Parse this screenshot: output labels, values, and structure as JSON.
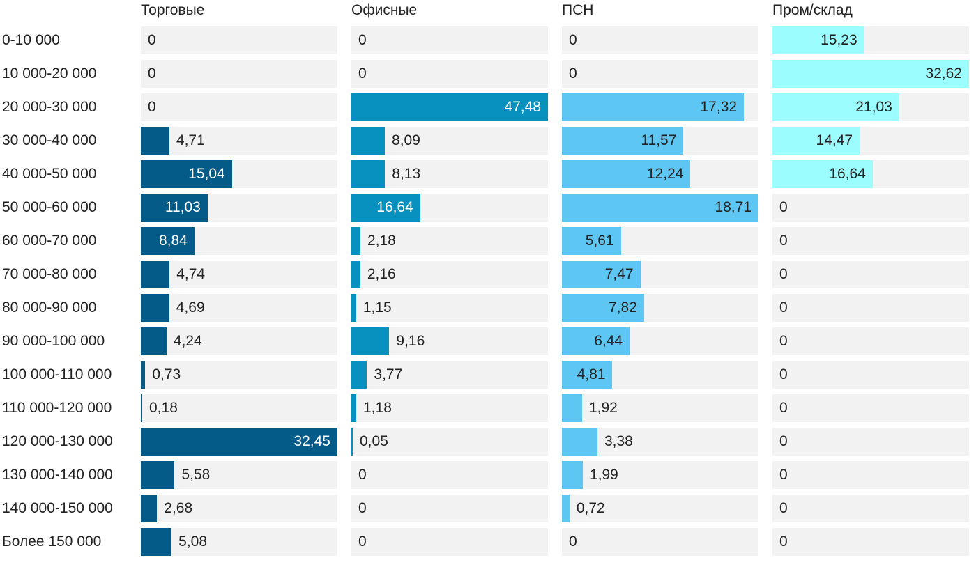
{
  "chart_data": {
    "type": "bar",
    "orientation": "horizontal",
    "layout": "small-multiples",
    "categories": [
      "0-10 000",
      "10 000-20 000",
      "20 000-30 000",
      "30 000-40 000",
      "40 000-50 000",
      "50 000-60 000",
      "60 000-70 000",
      "70 000-80 000",
      "80 000-90 000",
      "90 000-100 000",
      "100 000-110 000",
      "110 000-120 000",
      "120 000-130 000",
      "130 000-140 000",
      "140 000-150 000",
      "Более 150 000"
    ],
    "series": [
      {
        "name": "Торговые",
        "color": "#055b87",
        "label_inside_color": "#ffffff",
        "values": [
          0,
          0,
          0,
          4.71,
          15.04,
          11.03,
          8.84,
          4.74,
          4.69,
          4.24,
          0.73,
          0.18,
          32.45,
          5.58,
          2.68,
          5.08
        ]
      },
      {
        "name": "Офисные",
        "color": "#0891be",
        "label_inside_color": "#ffffff",
        "values": [
          0,
          0,
          47.48,
          8.09,
          8.13,
          16.64,
          2.18,
          2.16,
          1.15,
          9.16,
          3.77,
          1.18,
          0.05,
          0,
          0,
          0
        ]
      },
      {
        "name": "ПСН",
        "color": "#5dc6f2",
        "label_inside_color": "#222222",
        "values": [
          0,
          0,
          17.32,
          11.57,
          12.24,
          18.71,
          5.61,
          7.47,
          7.82,
          6.44,
          4.81,
          1.92,
          3.38,
          1.99,
          0.72,
          0
        ]
      },
      {
        "name": "Пром/склад",
        "color": "#9bfdfd",
        "label_inside_color": "#222222",
        "values": [
          15.23,
          32.62,
          21.03,
          14.47,
          16.64,
          0,
          0,
          0,
          0,
          0,
          0,
          0,
          0,
          0,
          0,
          0
        ]
      }
    ],
    "decimal_separator": ",",
    "track_color": "#f2f2f2",
    "grid": false,
    "legend": "none"
  }
}
